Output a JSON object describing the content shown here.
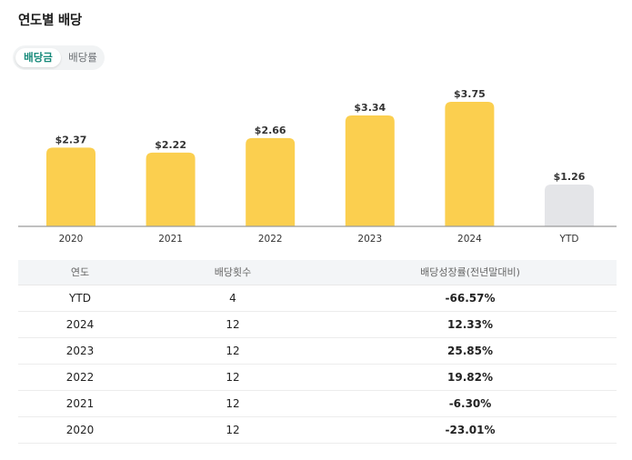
{
  "header": {
    "title": "연도별 배당"
  },
  "toggle": {
    "options": [
      {
        "label": "배당금",
        "active": true
      },
      {
        "label": "배당률",
        "active": false
      }
    ]
  },
  "colors": {
    "bar": "#fbcf4f",
    "bar_muted": "#e4e5e8",
    "positive": "#e5374b",
    "negative": "#2f6fe4",
    "active_tab": "#178a7a"
  },
  "chart_data": {
    "type": "bar",
    "categories": [
      "2020",
      "2021",
      "2022",
      "2023",
      "2024",
      "YTD"
    ],
    "values": [
      2.37,
      2.22,
      2.66,
      3.34,
      3.75,
      1.26
    ],
    "value_labels": [
      "$2.37",
      "$2.22",
      "$2.66",
      "$3.34",
      "$3.75",
      "$1.26"
    ],
    "muted": [
      false,
      false,
      false,
      false,
      false,
      true
    ],
    "title": "",
    "xlabel": "",
    "ylabel": "",
    "ylim": [
      0,
      3.75
    ],
    "grid": false
  },
  "table": {
    "columns": [
      "연도",
      "배당횟수",
      "배당성장률(전년말대비)"
    ],
    "rows": [
      {
        "year": "YTD",
        "count": "4",
        "growth": "-66.57%",
        "sign": "neg"
      },
      {
        "year": "2024",
        "count": "12",
        "growth": "12.33%",
        "sign": "pos"
      },
      {
        "year": "2023",
        "count": "12",
        "growth": "25.85%",
        "sign": "pos"
      },
      {
        "year": "2022",
        "count": "12",
        "growth": "19.82%",
        "sign": "pos"
      },
      {
        "year": "2021",
        "count": "12",
        "growth": "-6.30%",
        "sign": "neg"
      },
      {
        "year": "2020",
        "count": "12",
        "growth": "-23.01%",
        "sign": "neg"
      }
    ]
  }
}
